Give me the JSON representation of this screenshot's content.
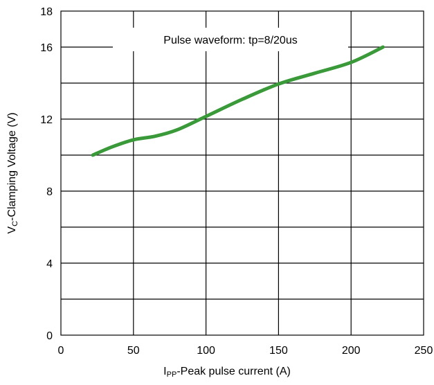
{
  "chart_data": {
    "type": "line",
    "xlabel_main": "I",
    "xlabel_sub": "PP",
    "xlabel_rest": "-Peak pulse current (A)",
    "ylabel_main": "V",
    "ylabel_sub": "C",
    "ylabel_rest": "-Clamping Voltage (V)",
    "annotation": "Pulse waveform: tp=8/20us",
    "xlim": [
      0,
      250
    ],
    "ylim": [
      0,
      18
    ],
    "x_ticks": [
      0,
      50,
      100,
      150,
      200,
      250
    ],
    "y_ticks": [
      0,
      4,
      8,
      12,
      16,
      18
    ],
    "x_gridlines": [
      50,
      100,
      150,
      200
    ],
    "y_gridlines": [
      2,
      4,
      6,
      8,
      10,
      12,
      14,
      16
    ],
    "grid": true,
    "series": [
      {
        "color": "#3a9a3a",
        "x": [
          22,
          35,
          50,
          65,
          80,
          100,
          125,
          150,
          175,
          200,
          222
        ],
        "y": [
          10.0,
          10.45,
          10.85,
          11.05,
          11.4,
          12.15,
          13.1,
          13.95,
          14.55,
          15.15,
          16.0
        ]
      }
    ]
  }
}
